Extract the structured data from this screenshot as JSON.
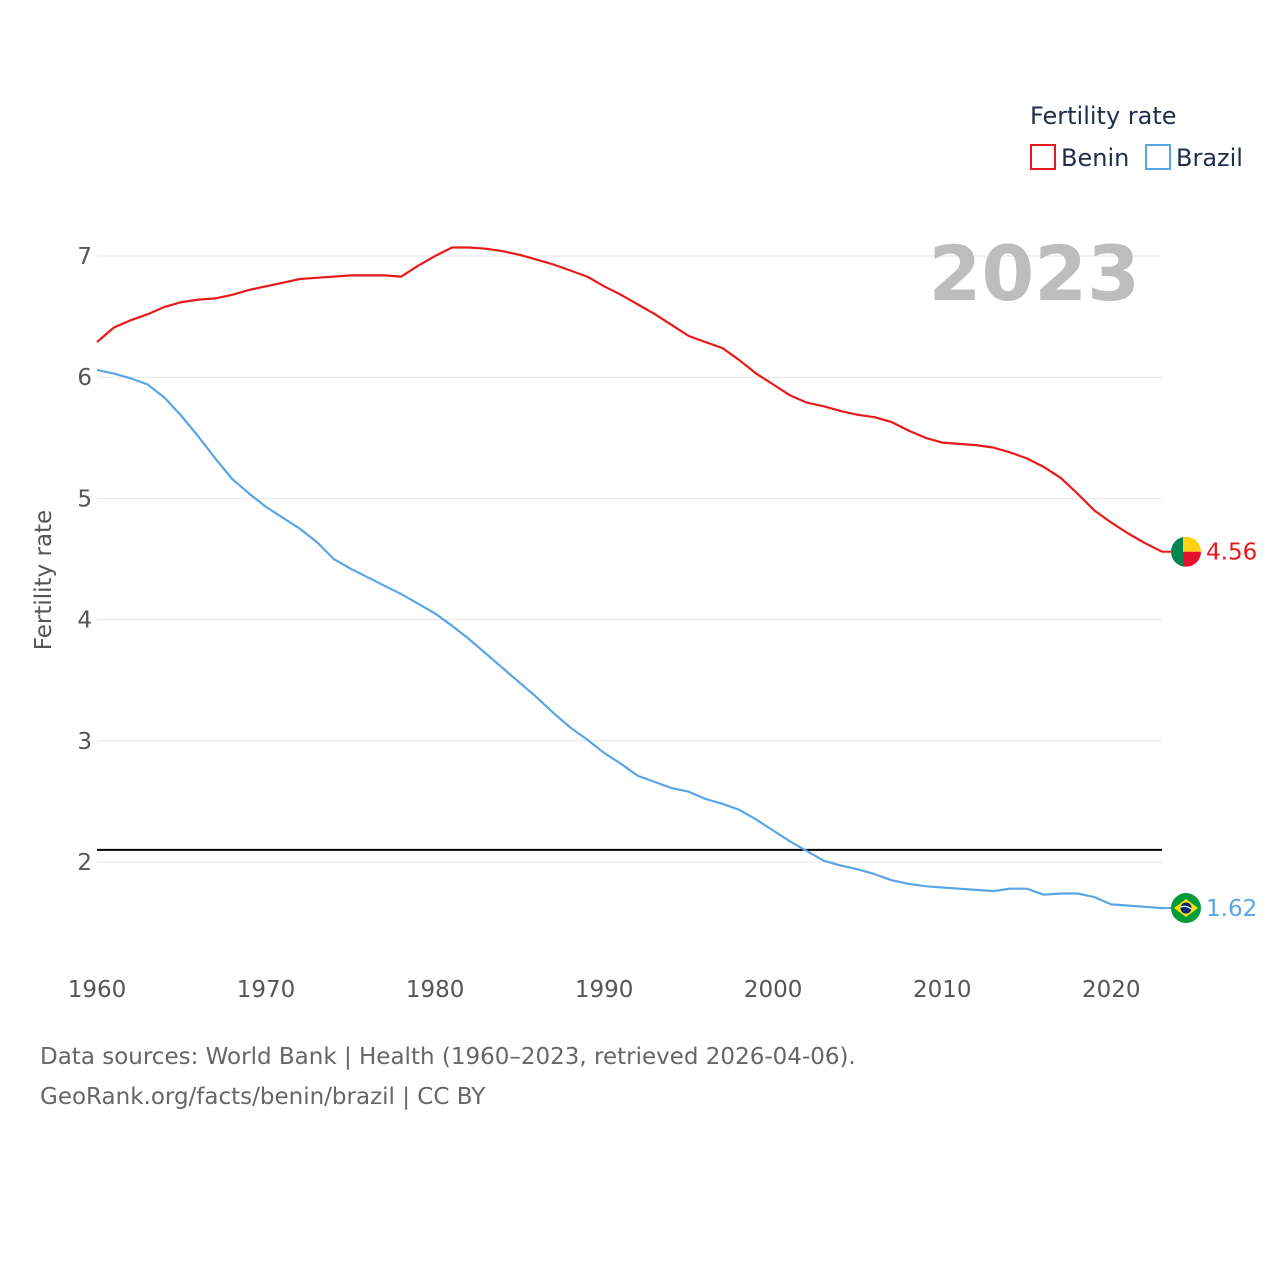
{
  "chart_data": {
    "type": "line",
    "year_label": "2023",
    "ylabel": "Fertility rate",
    "xlabel": "",
    "xlim": [
      1960,
      2023
    ],
    "ylim": [
      1.2,
      7.4
    ],
    "y_ticks": [
      2,
      3,
      4,
      5,
      6,
      7
    ],
    "x_ticks": [
      1960,
      1970,
      1980,
      1990,
      2000,
      2010,
      2020
    ],
    "reference_line": {
      "value": 2.1,
      "color": "#000000"
    },
    "legend": {
      "title": "Fertility rate",
      "position": "top-right"
    },
    "x": [
      1960,
      1961,
      1962,
      1963,
      1964,
      1965,
      1966,
      1967,
      1968,
      1969,
      1970,
      1971,
      1972,
      1973,
      1974,
      1975,
      1976,
      1977,
      1978,
      1979,
      1980,
      1981,
      1982,
      1983,
      1984,
      1985,
      1986,
      1987,
      1988,
      1989,
      1990,
      1991,
      1992,
      1993,
      1994,
      1995,
      1996,
      1997,
      1998,
      1999,
      2000,
      2001,
      2002,
      2003,
      2004,
      2005,
      2006,
      2007,
      2008,
      2009,
      2010,
      2011,
      2012,
      2013,
      2014,
      2015,
      2016,
      2017,
      2018,
      2019,
      2020,
      2021,
      2022,
      2023
    ],
    "series": [
      {
        "name": "Benin",
        "color": "#e8191a",
        "end_value": "4.56",
        "flag_icon": "benin-flag-icon",
        "values": [
          6.29,
          6.41,
          6.47,
          6.52,
          6.58,
          6.62,
          6.64,
          6.65,
          6.68,
          6.72,
          6.75,
          6.78,
          6.81,
          6.82,
          6.83,
          6.84,
          6.84,
          6.84,
          6.83,
          6.92,
          7.0,
          7.07,
          7.07,
          7.06,
          7.04,
          7.01,
          6.97,
          6.93,
          6.88,
          6.83,
          6.75,
          6.68,
          6.6,
          6.52,
          6.43,
          6.34,
          6.29,
          6.24,
          6.14,
          6.03,
          5.94,
          5.85,
          5.79,
          5.76,
          5.72,
          5.69,
          5.67,
          5.63,
          5.56,
          5.5,
          5.46,
          5.45,
          5.44,
          5.42,
          5.38,
          5.33,
          5.26,
          5.17,
          5.04,
          4.9,
          4.8,
          4.71,
          4.63,
          4.56
        ]
      },
      {
        "name": "Brazil",
        "color": "#5aa5e6",
        "end_value": "1.62",
        "flag_icon": "brazil-flag-icon",
        "values": [
          6.06,
          6.03,
          5.99,
          5.94,
          5.83,
          5.68,
          5.51,
          5.33,
          5.16,
          5.04,
          4.93,
          4.84,
          4.75,
          4.64,
          4.5,
          4.42,
          4.35,
          4.28,
          4.21,
          4.13,
          4.05,
          3.95,
          3.84,
          3.72,
          3.6,
          3.48,
          3.36,
          3.23,
          3.11,
          3.01,
          2.9,
          2.81,
          2.71,
          2.66,
          2.61,
          2.58,
          2.52,
          2.48,
          2.43,
          2.35,
          2.26,
          2.17,
          2.09,
          2.01,
          1.97,
          1.94,
          1.9,
          1.85,
          1.82,
          1.8,
          1.79,
          1.78,
          1.77,
          1.76,
          1.78,
          1.78,
          1.73,
          1.74,
          1.74,
          1.71,
          1.65,
          1.64,
          1.63,
          1.62
        ]
      }
    ]
  },
  "footer": {
    "source_line": "Data sources: World Bank | Health (1960–2023, retrieved 2026-04-06).",
    "url_line": "GeoRank.org/facts/benin/brazil | CC BY"
  }
}
